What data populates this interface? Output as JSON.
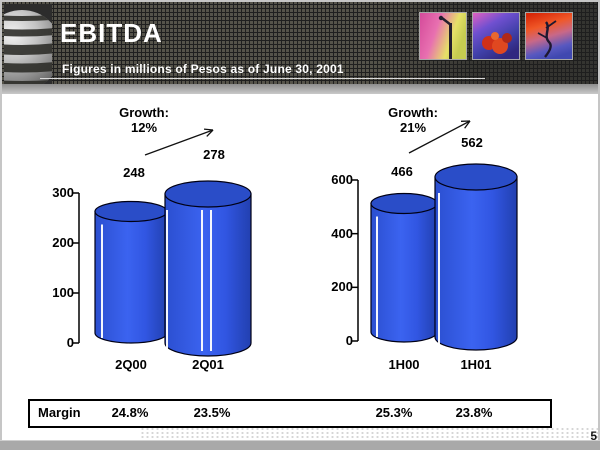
{
  "slide": {
    "title": "EBITDA",
    "subtitle": "Figures in millions of Pesos as of June 30, 2001",
    "page_number": "5"
  },
  "header": {
    "logo_icon": "globe-logo",
    "decor_images": [
      "abstract-pink-yellow-lamppost",
      "abstract-purple-red-fruits",
      "abstract-red-blue-dancer"
    ],
    "bg_color": "#2f2f2f"
  },
  "chart_data": [
    {
      "type": "bar",
      "title": "EBITDA quarterly",
      "categories": [
        "2Q00",
        "2Q01"
      ],
      "values": [
        248,
        278
      ],
      "growth_label": "Growth:",
      "growth_value": "12%",
      "yticks": [
        0,
        100,
        200,
        300
      ],
      "ylim": [
        0,
        300
      ],
      "bar_color": "#3b63f0",
      "bar_top_color": "#2a4dc8",
      "xlabel": "",
      "ylabel": "",
      "grid": false,
      "legend": false
    },
    {
      "type": "bar",
      "title": "EBITDA half-year",
      "categories": [
        "1H00",
        "1H01"
      ],
      "values": [
        466,
        562
      ],
      "growth_label": "Growth:",
      "growth_value": "21%",
      "yticks": [
        0,
        200,
        400,
        600
      ],
      "ylim": [
        0,
        600
      ],
      "bar_color": "#3b63f0",
      "bar_top_color": "#2a4dc8",
      "xlabel": "",
      "ylabel": "",
      "grid": false,
      "legend": false
    }
  ],
  "margin_row": {
    "label": "Margin",
    "values": [
      "24.8%",
      "23.5%",
      "25.3%",
      "23.8%"
    ]
  }
}
